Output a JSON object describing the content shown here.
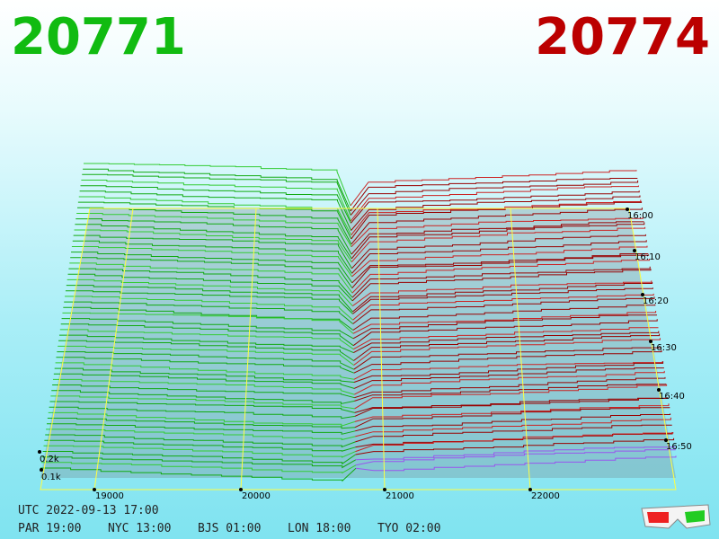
{
  "bid": "20771",
  "ask": "20774",
  "price_axis": [
    "19000",
    "20000",
    "21000",
    "22000"
  ],
  "depth_axis": [
    "0.2k",
    "0.1k"
  ],
  "time_axis": [
    "16:00",
    "16:10",
    "16:20",
    "16:30",
    "16:40",
    "16:50"
  ],
  "clock": {
    "utc": "UTC 2022-09-13 17:00",
    "zones": [
      "PAR 19:00",
      "NYC 13:00",
      "BJS 01:00",
      "LON 18:00",
      "TYO 02:00"
    ]
  }
}
